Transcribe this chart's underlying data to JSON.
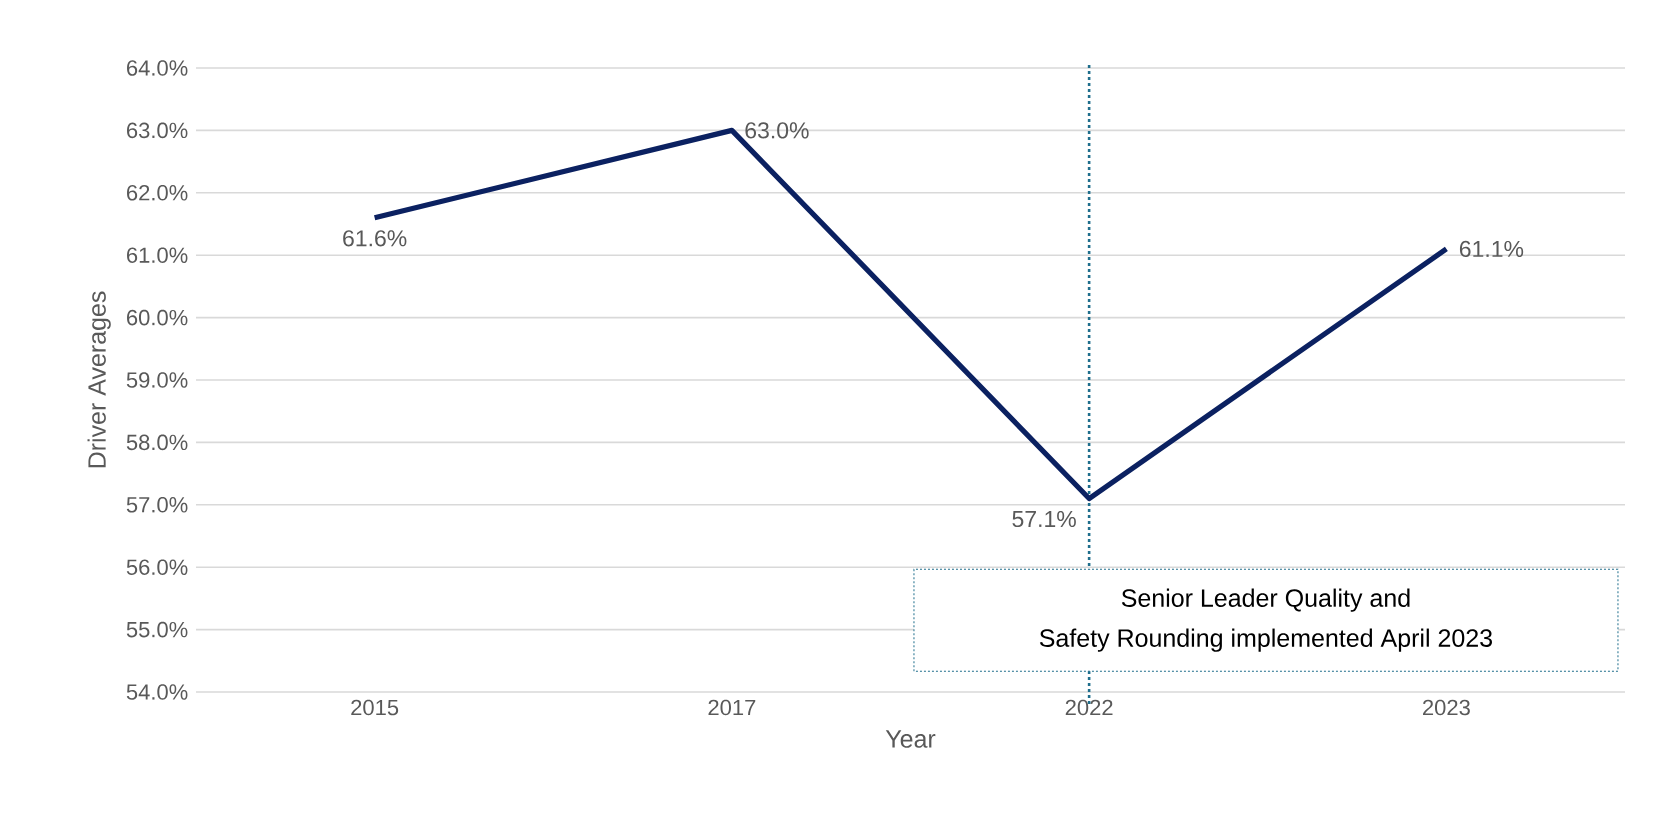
{
  "chart_data": {
    "type": "line",
    "xlabel": "Year",
    "ylabel": "Driver Averages",
    "categories": [
      "2015",
      "2017",
      "2022",
      "2023"
    ],
    "series": [
      {
        "color": "#0b2161",
        "values": [
          61.6,
          63.0,
          57.1,
          61.1
        ],
        "value_labels": [
          "61.6%",
          "63.0%",
          "57.1%",
          "61.1%"
        ]
      }
    ],
    "ylim": [
      54,
      64
    ],
    "yticks": [
      {
        "value": 54,
        "label": "54.0%"
      },
      {
        "value": 55,
        "label": "55.0%"
      },
      {
        "value": 56,
        "label": "56.0%"
      },
      {
        "value": 57,
        "label": "57.0%"
      },
      {
        "value": 58,
        "label": "58.0%"
      },
      {
        "value": 59,
        "label": "59.0%"
      },
      {
        "value": 60,
        "label": "60.0%"
      },
      {
        "value": 61,
        "label": "61.0%"
      },
      {
        "value": 62,
        "label": "62.0%"
      },
      {
        "value": 63,
        "label": "63.0%"
      },
      {
        "value": 64,
        "label": "64.0%"
      }
    ],
    "annotations": [
      "Senior Leader Quality and",
      "Safety Rounding implemented April 2023"
    ],
    "ref_lines": [
      {
        "axis": "x",
        "value": "2022",
        "color": "#1f6e8c",
        "line_style": "dotted"
      }
    ],
    "grid": "y",
    "marker": "none",
    "line_style": "solid"
  }
}
